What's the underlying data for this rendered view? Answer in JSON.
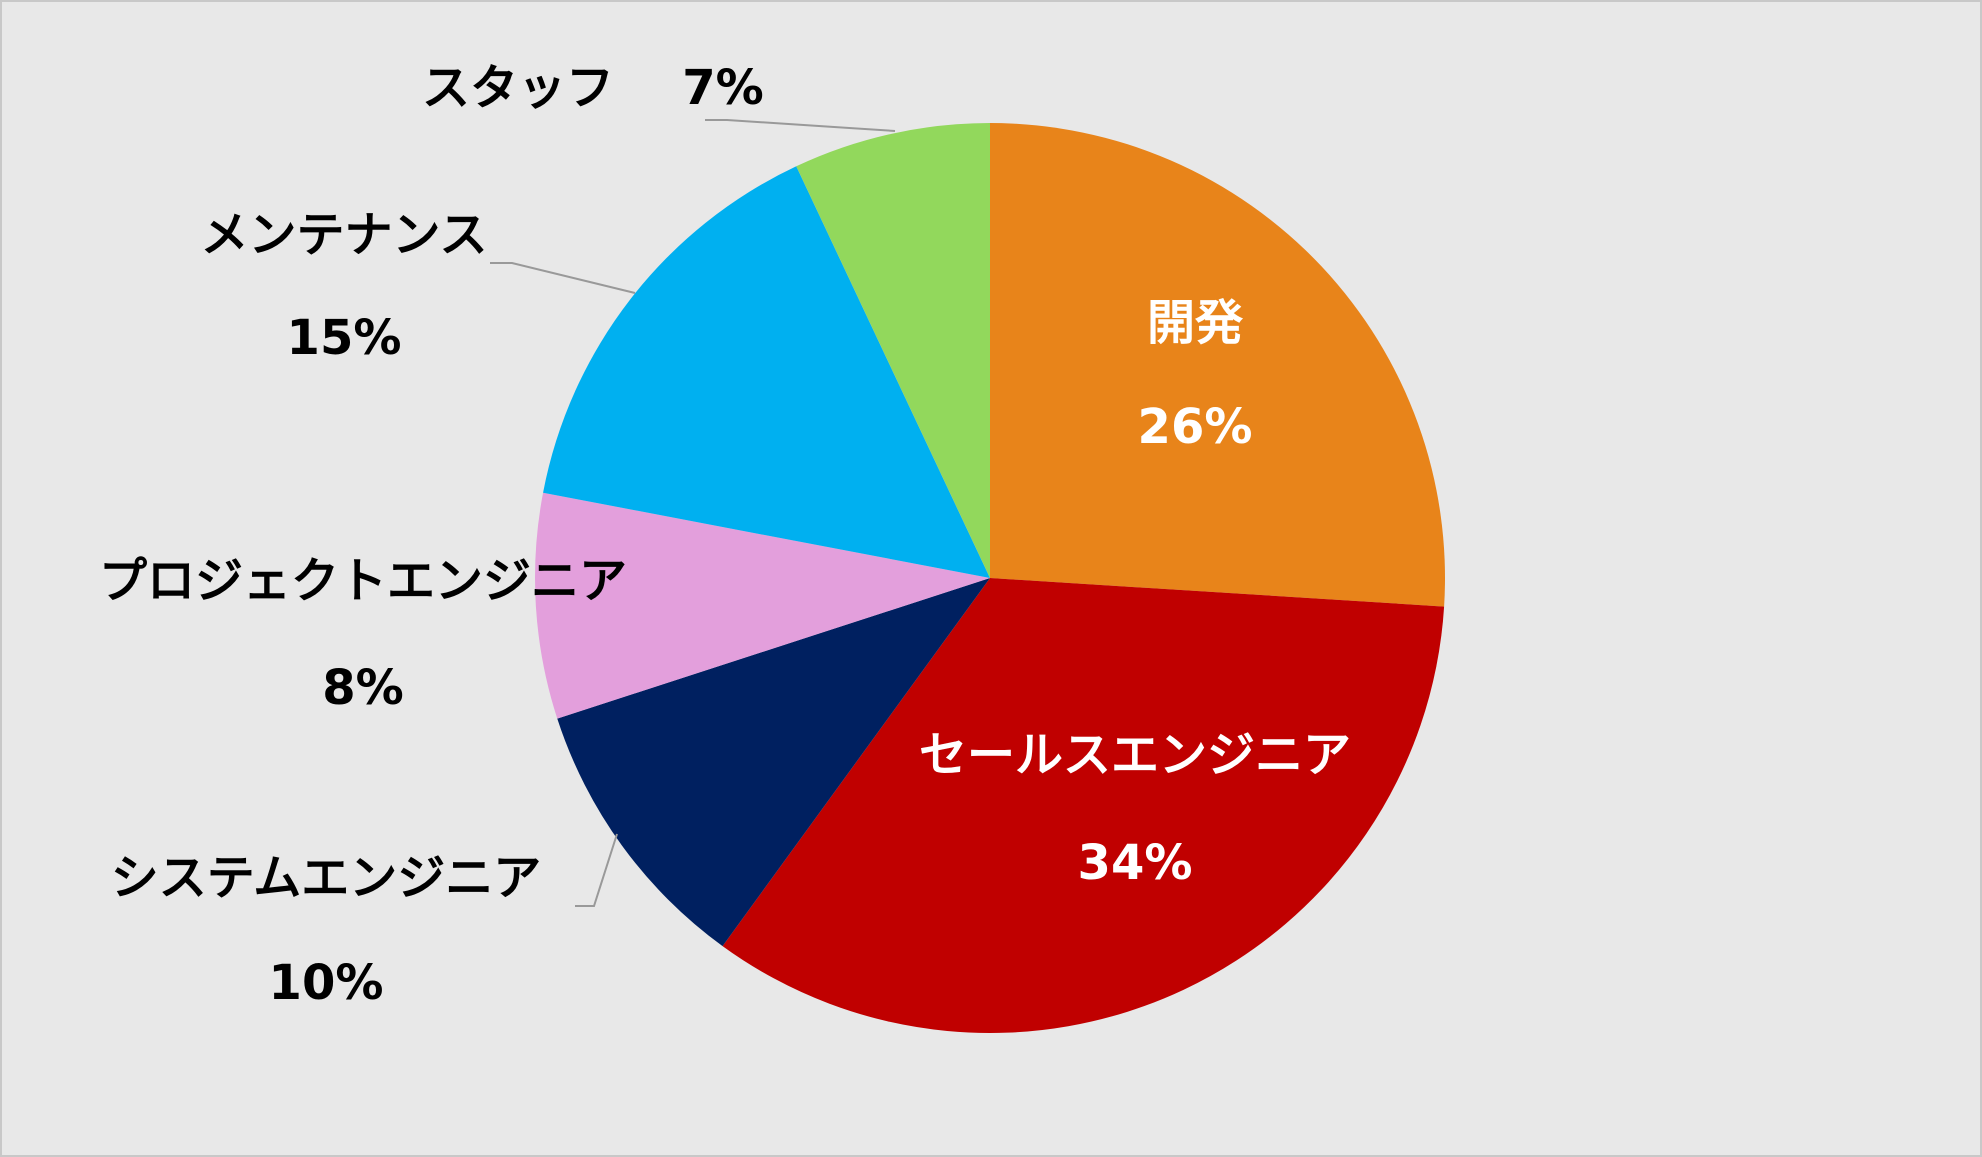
{
  "chart_data": {
    "type": "pie",
    "categories": [
      "開発",
      "セールスエンジニア",
      "システムエンジニア",
      "プロジェクトエンジニア",
      "メンテナンス",
      "スタッフ"
    ],
    "values": [
      26,
      34,
      10,
      8,
      15,
      7
    ],
    "value_labels": [
      "26%",
      "34%",
      "10%",
      "8%",
      "15%",
      "7%"
    ],
    "colors": [
      "#e8841a",
      "#c00000",
      "#002060",
      "#e39fdc",
      "#00b0f0",
      "#92d85c"
    ]
  }
}
